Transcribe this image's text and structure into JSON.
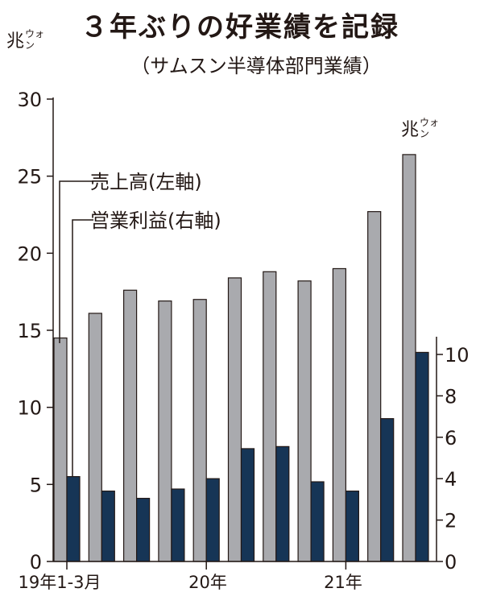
{
  "title": "３年ぶりの好業績を記録",
  "subtitle": "（サムスン半導体部門業績）",
  "colors": {
    "sales": "#a9aaae",
    "profit": "#163556",
    "axis": "#231815"
  },
  "chart_data": {
    "type": "bar",
    "categories": [
      "19年1-3月",
      "",
      "",
      "",
      "20年",
      "",
      "",
      "",
      "21年",
      "",
      ""
    ],
    "x_tick_labels": [
      "19年1-3月",
      "20年",
      "21年"
    ],
    "left_axis": {
      "unit_main": "兆",
      "unit_small_top": "ウォ",
      "unit_small_bottom": "ン",
      "ylim": [
        0,
        30
      ],
      "ticks": [
        "0",
        "5",
        "10",
        "15",
        "20",
        "25",
        "30"
      ]
    },
    "right_axis": {
      "unit_main": "兆",
      "unit_small_top": "ウォ",
      "unit_small_bottom": "ン",
      "ylim": [
        0,
        10
      ],
      "ticks": [
        "0",
        "2",
        "4",
        "6",
        "8",
        "10"
      ]
    },
    "series": [
      {
        "name": "売上高(左軸)",
        "axis": "left",
        "values": [
          14.5,
          16.1,
          17.6,
          16.9,
          17.0,
          18.4,
          18.8,
          18.2,
          19.0,
          22.7,
          26.4
        ]
      },
      {
        "name": "営業利益(右軸)",
        "axis": "right",
        "values": [
          4.1,
          3.4,
          3.05,
          3.5,
          4.0,
          5.45,
          5.55,
          3.85,
          3.4,
          6.9,
          10.1
        ]
      }
    ],
    "grid": false
  }
}
